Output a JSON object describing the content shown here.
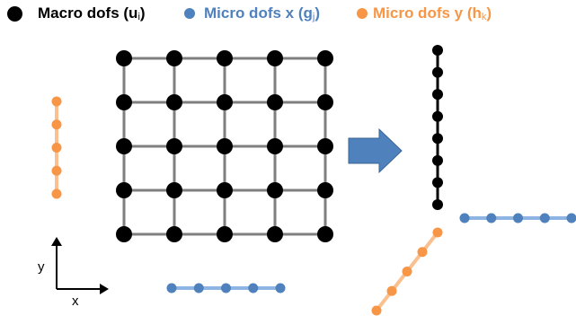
{
  "legend": {
    "macro": {
      "label_main": "Macro dofs (u",
      "label_sub": "i",
      "label_close": ")",
      "color": "#000000",
      "icon": "black-dot-icon"
    },
    "micro_x": {
      "label_main": "Micro dofs x (g",
      "label_sub": "j",
      "label_close": ")",
      "color": "#4f81bd",
      "icon": "blue-dot-icon"
    },
    "micro_y": {
      "label_main": "Micro dofs y (h",
      "label_sub": "k",
      "label_close": ")",
      "color": "#f79646",
      "icon": "orange-dot-icon"
    }
  },
  "axes": {
    "x_label": "x",
    "y_label": "y"
  },
  "diagram": {
    "grid": {
      "rows": 5,
      "cols": 5,
      "node_color": "#000000",
      "line_color": "#7f7f7f"
    },
    "left_micro_y_nodes": 5,
    "bottom_micro_x_nodes": 5,
    "arrow_color": "#4f81bd",
    "result_macro_column_nodes": 8,
    "result_micro_x_nodes": 5,
    "result_micro_y_nodes": 5,
    "micro_x_line_color": "#8eb4e3",
    "micro_y_line_color": "#fac090"
  }
}
